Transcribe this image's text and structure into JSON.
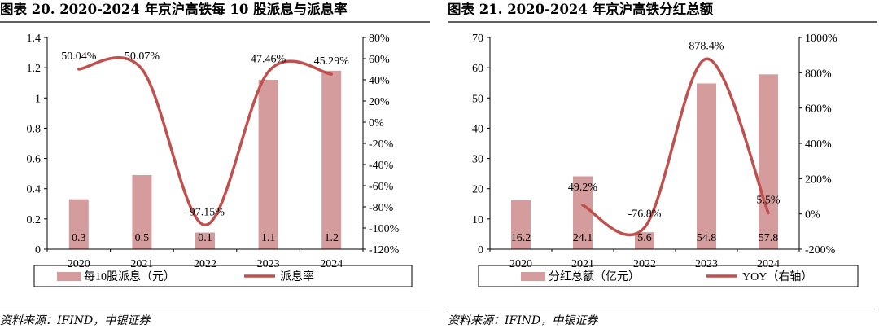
{
  "charts": {
    "left": {
      "title": "图表 20. 2020-2024 年京沪高铁每 10 股派息与派息率",
      "source": "资料来源：IFIND，中银证券"
    },
    "right": {
      "title": "图表 21. 2020-2024 年京沪高铁分红总额",
      "source": "资料来源：IFIND，中银证券"
    }
  },
  "colors": {
    "bar": "#d49c9c",
    "line": "#c0504d"
  },
  "chart_data": [
    {
      "type": "bar",
      "categories": [
        "2020",
        "2021",
        "2022",
        "2023",
        "2024"
      ],
      "series": [
        {
          "name": "每10股派息（元）",
          "kind": "bar",
          "axis": "left",
          "values": [
            0.33,
            0.49,
            0.11,
            1.12,
            1.18
          ],
          "labels": [
            "0.3",
            "0.5",
            "0.1",
            "1.1",
            "1.2"
          ]
        },
        {
          "name": "派息率",
          "kind": "line",
          "axis": "right",
          "values": [
            50.04,
            50.07,
            -97.15,
            47.46,
            45.29
          ],
          "labels": [
            "50.04%",
            "50.07%",
            "-97.15%",
            "47.46%",
            "45.29%"
          ]
        }
      ],
      "y_left": {
        "min": 0,
        "max": 1.4,
        "ticks": [
          "0",
          "0.2",
          "0.4",
          "0.6",
          "0.8",
          "1",
          "1.2",
          "1.4"
        ]
      },
      "y_right": {
        "min": -120,
        "max": 80,
        "ticks": [
          "-120%",
          "-100%",
          "-80%",
          "-60%",
          "-40%",
          "-20%",
          "0%",
          "20%",
          "40%",
          "60%",
          "80%"
        ]
      },
      "grid": false,
      "legend": "bottom"
    },
    {
      "type": "bar",
      "categories": [
        "2020",
        "2021",
        "2022",
        "2023",
        "2024"
      ],
      "series": [
        {
          "name": "分红总额（亿元）",
          "kind": "bar",
          "axis": "left",
          "values": [
            16.2,
            24.1,
            5.6,
            54.8,
            57.8
          ],
          "labels": [
            "16.2",
            "24.1",
            "5.6",
            "54.8",
            "57.8"
          ]
        },
        {
          "name": "YOY（右轴）",
          "kind": "line",
          "axis": "right",
          "values": [
            null,
            49.2,
            -76.8,
            878.4,
            5.5
          ],
          "labels": [
            "",
            "49.2%",
            "-76.8%",
            "878.4%",
            "5.5%"
          ]
        }
      ],
      "y_left": {
        "min": 0,
        "max": 70,
        "ticks": [
          "0",
          "10",
          "20",
          "30",
          "40",
          "50",
          "60",
          "70"
        ]
      },
      "y_right": {
        "min": -200,
        "max": 1000,
        "ticks": [
          "-200%",
          "0%",
          "200%",
          "400%",
          "600%",
          "800%",
          "1000%"
        ]
      },
      "grid": false,
      "legend": "bottom"
    }
  ]
}
